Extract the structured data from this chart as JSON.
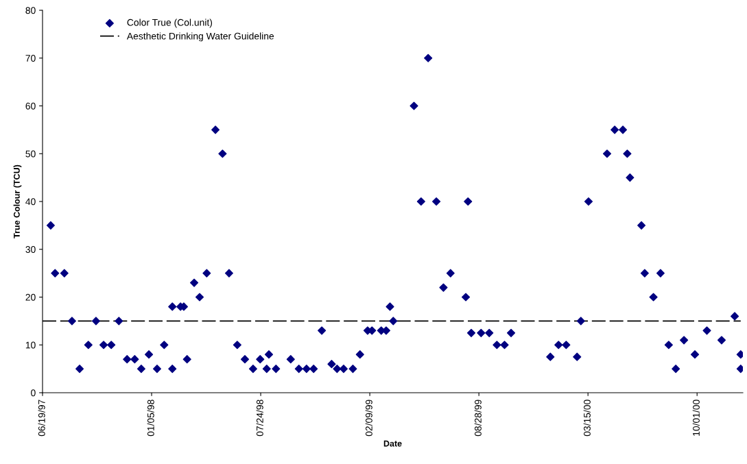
{
  "chart_data": {
    "type": "scatter",
    "xlabel": "Date",
    "ylabel": "True Colour (TCU)",
    "xlim": [
      "1997-06-19",
      "2000-12-24"
    ],
    "xticks": [
      {
        "value": "1997-06-19",
        "label": "06/19/97"
      },
      {
        "value": "1998-01-05",
        "label": "01/05/98"
      },
      {
        "value": "1998-07-24",
        "label": "07/24/98"
      },
      {
        "value": "1999-02-09",
        "label": "02/09/99"
      },
      {
        "value": "1999-08-28",
        "label": "08/28/99"
      },
      {
        "value": "2000-03-15",
        "label": "03/15/00"
      },
      {
        "value": "2000-10-01",
        "label": "10/01/00"
      }
    ],
    "ylim": [
      0,
      80
    ],
    "yticks": [
      0,
      10,
      20,
      30,
      40,
      50,
      60,
      70,
      80
    ],
    "grid": false,
    "legend": "top left",
    "series": [
      {
        "name": "Color True (Col.unit)",
        "marker": "diamond",
        "color": "#000080",
        "x": [
          "1997-07-04",
          "1997-07-12",
          "1997-07-29",
          "1997-08-12",
          "1997-08-26",
          "1997-09-11",
          "1997-09-25",
          "1997-10-09",
          "1997-10-23",
          "1997-11-06",
          "1997-11-21",
          "1997-12-05",
          "1997-12-17",
          "1997-12-31",
          "1998-01-15",
          "1998-01-28",
          "1998-02-12",
          "1998-02-12",
          "1998-02-27",
          "1998-03-05",
          "1998-03-11",
          "1998-03-24",
          "1998-04-03",
          "1998-04-16",
          "1998-05-02",
          "1998-05-15",
          "1998-05-27",
          "1998-06-11",
          "1998-06-25",
          "1998-07-10",
          "1998-07-23",
          "1998-08-04",
          "1998-08-08",
          "1998-08-21",
          "1998-09-17",
          "1998-10-02",
          "1998-10-16",
          "1998-10-29",
          "1998-11-13",
          "1998-12-01",
          "1998-12-11",
          "1998-12-23",
          "1999-01-09",
          "1999-01-22",
          "1999-02-05",
          "1999-02-13",
          "1999-03-02",
          "1999-03-11",
          "1999-03-18",
          "1999-03-24",
          "1999-05-01",
          "1999-05-14",
          "1999-05-27",
          "1999-06-11",
          "1999-06-24",
          "1999-07-07",
          "1999-08-04",
          "1999-08-08",
          "1999-08-14",
          "1999-09-01",
          "1999-09-16",
          "1999-09-30",
          "1999-10-14",
          "1999-10-26",
          "2000-01-06",
          "2000-01-21",
          "2000-02-04",
          "2000-02-24",
          "2000-03-02",
          "2000-03-16",
          "2000-04-19",
          "2000-05-03",
          "2000-05-18",
          "2000-05-26",
          "2000-05-31",
          "2000-06-21",
          "2000-06-27",
          "2000-07-13",
          "2000-07-26",
          "2000-08-10",
          "2000-08-23",
          "2000-09-07",
          "2000-09-27",
          "2000-10-19",
          "2000-11-15",
          "2000-12-09",
          "2000-12-20",
          "2000-12-20"
        ],
        "values": [
          35,
          25,
          25,
          15,
          5,
          10,
          15,
          10,
          10,
          15,
          7,
          7,
          5,
          8,
          5,
          10,
          18,
          5,
          18,
          18,
          7,
          23,
          20,
          25,
          55,
          50,
          25,
          10,
          7,
          5,
          7,
          5,
          8,
          5,
          7,
          5,
          5,
          5,
          13,
          6,
          5,
          5,
          5,
          8,
          13,
          13,
          13,
          13,
          18,
          15,
          60,
          40,
          70,
          40,
          22,
          25,
          20,
          40,
          12.5,
          12.5,
          12.5,
          10,
          10,
          12.5,
          7.5,
          10,
          10,
          7.5,
          15,
          40,
          50,
          55,
          55,
          50,
          45,
          35,
          25,
          20,
          25,
          10,
          5,
          11,
          8,
          13,
          11,
          16,
          8,
          5
        ]
      },
      {
        "name": "Aesthetic Drinking Water Guideline",
        "type": "line",
        "line_style": "dashed",
        "marker": "none",
        "color": "#000000",
        "x": [
          "1997-06-19",
          "2000-12-20"
        ],
        "values": [
          15,
          15
        ]
      }
    ]
  }
}
